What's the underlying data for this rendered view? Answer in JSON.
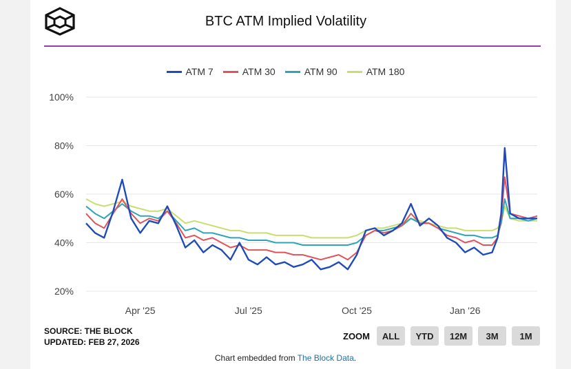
{
  "header": {
    "title": "BTC ATM Implied Volatility"
  },
  "footer": {
    "source_line": "SOURCE: THE BLOCK",
    "updated_line": "UPDATED: FEB 27, 2026",
    "embed_prefix": "Chart embedded from ",
    "embed_link": "The Block Data",
    "embed_suffix": "."
  },
  "zoom": {
    "label": "ZOOM",
    "buttons": [
      "ALL",
      "YTD",
      "12M",
      "3M",
      "1M"
    ]
  },
  "colors": {
    "atm7": "#1f4bb8",
    "atm30": "#e2525a",
    "atm90": "#2ea4b8",
    "atm180": "#c8de6e",
    "accent_rule": "#8e3fa0",
    "grid": "#e6e6e6"
  },
  "chart_data": {
    "type": "line",
    "title": "BTC ATM Implied Volatility",
    "xlabel": "",
    "ylabel": "",
    "ylim": [
      20,
      100
    ],
    "xlim": [
      0,
      12.5
    ],
    "y_ticks": [
      20,
      40,
      60,
      80,
      100
    ],
    "y_tick_labels": [
      "20%",
      "40%",
      "60%",
      "80%",
      "100%"
    ],
    "x_ticks": [
      1.5,
      4.5,
      7.5,
      10.5
    ],
    "x_tick_labels": [
      "Apr '25",
      "Jul '25",
      "Oct '25",
      "Jan '26"
    ],
    "legend_position": "top-center",
    "x": [
      0,
      0.25,
      0.5,
      0.75,
      1,
      1.25,
      1.5,
      1.75,
      2,
      2.25,
      2.5,
      2.75,
      3,
      3.25,
      3.5,
      3.75,
      4,
      4.25,
      4.5,
      4.75,
      5,
      5.25,
      5.5,
      5.75,
      6,
      6.25,
      6.5,
      6.75,
      7,
      7.25,
      7.5,
      7.75,
      8,
      8.25,
      8.5,
      8.75,
      9,
      9.25,
      9.5,
      9.75,
      10,
      10.25,
      10.5,
      10.75,
      11,
      11.25,
      11.4,
      11.5,
      11.6,
      11.75,
      12,
      12.25,
      12.5
    ],
    "series": [
      {
        "name": "ATM 7",
        "values": [
          48,
          44,
          42,
          53,
          66,
          50,
          44,
          49,
          48,
          55,
          47,
          38,
          41,
          36,
          39,
          37,
          33,
          40,
          33,
          31,
          34,
          31,
          32,
          30,
          31,
          33,
          29,
          30,
          32,
          29,
          35,
          45,
          46,
          43,
          45,
          48,
          56,
          47,
          50,
          47,
          42,
          40,
          36,
          38,
          35,
          36,
          42,
          52,
          79,
          52,
          50,
          50,
          50
        ]
      },
      {
        "name": "ATM 30",
        "values": [
          52,
          48,
          46,
          52,
          58,
          52,
          48,
          50,
          49,
          53,
          48,
          42,
          43,
          41,
          42,
          40,
          38,
          39,
          37,
          37,
          37,
          36,
          36,
          35,
          35,
          34,
          33,
          34,
          35,
          33,
          36,
          43,
          45,
          44,
          45,
          47,
          52,
          48,
          48,
          46,
          43,
          42,
          40,
          41,
          39,
          39,
          42,
          50,
          67,
          52,
          51,
          50,
          51
        ]
      },
      {
        "name": "ATM 90",
        "values": [
          55,
          52,
          50,
          53,
          56,
          53,
          51,
          51,
          50,
          53,
          49,
          45,
          46,
          44,
          44,
          43,
          42,
          42,
          41,
          41,
          41,
          40,
          40,
          40,
          39,
          39,
          39,
          39,
          39,
          39,
          40,
          43,
          45,
          45,
          46,
          47,
          50,
          48,
          48,
          46,
          45,
          44,
          43,
          43,
          42,
          42,
          43,
          48,
          58,
          50,
          50,
          49,
          50
        ]
      },
      {
        "name": "ATM 180",
        "values": [
          58,
          56,
          55,
          56,
          57,
          55,
          54,
          53,
          53,
          54,
          51,
          48,
          49,
          48,
          47,
          46,
          45,
          45,
          44,
          44,
          44,
          43,
          43,
          43,
          43,
          42,
          42,
          42,
          42,
          42,
          43,
          45,
          46,
          46,
          47,
          48,
          50,
          49,
          48,
          47,
          46,
          46,
          45,
          45,
          45,
          45,
          46,
          48,
          55,
          50,
          49,
          49,
          49
        ]
      }
    ]
  }
}
